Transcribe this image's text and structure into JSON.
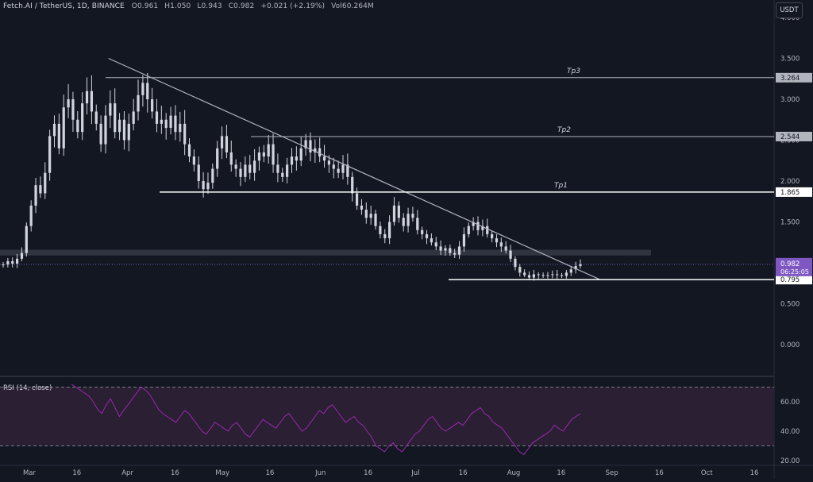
{
  "header": {
    "symbol": "Fetch.AI / TetherUS, 1D, BINANCE",
    "open": "O0.961",
    "high": "H1.050",
    "low": "L0.943",
    "close": "C0.982",
    "change": "+0.021 (+2.19%)",
    "volume": "Vol60.264M"
  },
  "currency_button": "USDT",
  "rsi_label": "RSI (14, close)",
  "colors": {
    "background": "#131722",
    "candle_up": "#d1d4dc",
    "candle_down": "#d1d4dc",
    "line": "#b2b5be",
    "level": "#ffffff",
    "zone": "#363a45",
    "rsi_line": "#9c27b0",
    "rsi_band": "#2a1f33",
    "price_badge": "#7e57c2"
  },
  "chart_data": {
    "type": "candlestick",
    "price_axis": {
      "ticks": [
        "3.500",
        "3.000",
        "2.500",
        "2.000",
        "1.500",
        "1.000",
        "0.500",
        "0.000"
      ],
      "values": [
        3.5,
        3.0,
        2.5,
        2.0,
        1.5,
        1.0,
        0.5,
        0.0
      ],
      "partial_top_tick": "4.000"
    },
    "time_axis": {
      "labels": [
        "Mar",
        "16",
        "Apr",
        "16",
        "May",
        "16",
        "Jun",
        "16",
        "Jul",
        "16",
        "Aug",
        "16",
        "Sep",
        "16",
        "Oct",
        "16"
      ],
      "dates": [
        "2023-03-01",
        "2023-03-16",
        "2023-04-01",
        "2023-04-16",
        "2023-05-01",
        "2023-05-16",
        "2023-06-01",
        "2023-06-16",
        "2023-07-01",
        "2023-07-16",
        "2023-08-01",
        "2023-08-16",
        "2023-09-01",
        "2023-09-16",
        "2023-10-01",
        "2023-10-16"
      ]
    },
    "candles_close": [
      0.98,
      1.02,
      0.99,
      1.05,
      1.12,
      1.45,
      1.7,
      1.95,
      1.85,
      2.1,
      2.55,
      2.7,
      2.4,
      2.9,
      3.0,
      2.75,
      2.6,
      2.95,
      3.1,
      2.85,
      2.7,
      2.45,
      2.8,
      2.95,
      2.6,
      2.75,
      2.5,
      2.7,
      2.85,
      3.05,
      3.2,
      3.0,
      2.85,
      2.7,
      2.75,
      2.65,
      2.8,
      2.6,
      2.7,
      2.45,
      2.3,
      2.2,
      2.0,
      1.9,
      1.98,
      2.15,
      2.4,
      2.55,
      2.35,
      2.2,
      2.15,
      2.05,
      2.2,
      2.1,
      2.25,
      2.35,
      2.3,
      2.45,
      2.2,
      2.1,
      2.05,
      2.2,
      2.3,
      2.25,
      2.4,
      2.5,
      2.35,
      2.4,
      2.3,
      2.25,
      2.2,
      2.15,
      2.1,
      2.2,
      2.05,
      1.85,
      1.7,
      1.65,
      1.55,
      1.6,
      1.45,
      1.35,
      1.3,
      1.5,
      1.7,
      1.55,
      1.45,
      1.6,
      1.55,
      1.4,
      1.35,
      1.3,
      1.25,
      1.2,
      1.15,
      1.18,
      1.12,
      1.1,
      1.2,
      1.35,
      1.45,
      1.5,
      1.4,
      1.45,
      1.35,
      1.3,
      1.25,
      1.2,
      1.15,
      1.05,
      0.95,
      0.88,
      0.85,
      0.82,
      0.86,
      0.85,
      0.84,
      0.85,
      0.86,
      0.85,
      0.84,
      0.88,
      0.92,
      0.961,
      0.982
    ],
    "levels": [
      {
        "label": "Tp3",
        "value": 3.264,
        "badge": "3.264"
      },
      {
        "label": "Tp2",
        "value": 2.544,
        "badge": "2.544"
      },
      {
        "label": "Tp1",
        "value": 1.865,
        "badge": "1.865"
      },
      {
        "label": "",
        "value": 0.795,
        "badge": "0.795"
      }
    ],
    "zone": {
      "from": 1.09,
      "to": 1.16
    },
    "trendline": {
      "from_date": "2023-03-26",
      "from_price": 3.5,
      "to_date": "2023-08-28",
      "to_price": 0.8
    },
    "last_price": {
      "value": "0.982",
      "countdown": "06:25:05"
    },
    "rsi": {
      "ticks": [
        "60.00",
        "40.00",
        "20.00"
      ],
      "tick_values": [
        60,
        40,
        20
      ],
      "upper_band": 70,
      "lower_band": 30,
      "values": [
        72,
        70,
        68,
        66,
        64,
        60,
        55,
        52,
        58,
        62,
        56,
        50,
        54,
        58,
        62,
        66,
        70,
        68,
        65,
        60,
        55,
        52,
        50,
        48,
        46,
        50,
        54,
        52,
        48,
        44,
        40,
        38,
        42,
        46,
        44,
        42,
        40,
        44,
        46,
        42,
        38,
        36,
        40,
        44,
        48,
        46,
        44,
        42,
        46,
        50,
        52,
        48,
        44,
        40,
        42,
        46,
        50,
        54,
        52,
        56,
        58,
        54,
        50,
        46,
        48,
        50,
        46,
        44,
        40,
        36,
        30,
        28,
        26,
        30,
        32,
        28,
        26,
        30,
        34,
        38,
        40,
        44,
        48,
        50,
        46,
        42,
        40,
        42,
        44,
        46,
        44,
        48,
        52,
        54,
        56,
        52,
        50,
        46,
        44,
        42,
        38,
        34,
        30,
        26,
        24,
        28,
        32,
        34,
        36,
        38,
        40,
        44,
        42,
        40,
        44,
        48,
        50,
        52
      ]
    }
  }
}
